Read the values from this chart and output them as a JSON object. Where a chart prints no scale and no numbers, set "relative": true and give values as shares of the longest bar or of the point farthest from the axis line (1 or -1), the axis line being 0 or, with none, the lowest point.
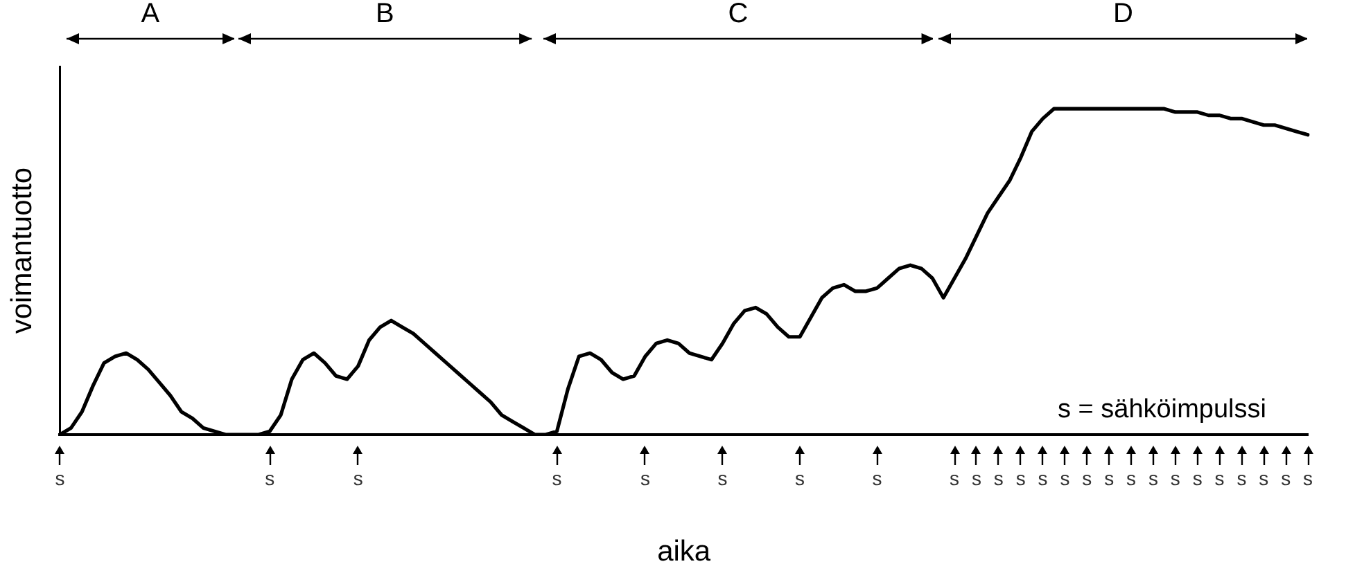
{
  "chart_data": {
    "type": "line",
    "xlabel": "aika",
    "ylabel": "voimantuotto",
    "relative": true,
    "tick_labels": "x",
    "grid": false,
    "legend": false,
    "marker": "none",
    "line_style": "solid",
    "categories": [
      "s",
      null,
      null,
      null,
      null,
      null,
      null,
      null,
      null,
      null,
      null,
      null,
      null,
      null,
      null,
      null,
      null,
      null,
      null,
      "s",
      null,
      null,
      null,
      null,
      null,
      null,
      null,
      "s",
      null,
      null,
      null,
      null,
      null,
      null,
      null,
      null,
      null,
      null,
      null,
      null,
      null,
      null,
      null,
      null,
      null,
      "s",
      null,
      null,
      null,
      null,
      null,
      null,
      null,
      "s",
      null,
      null,
      null,
      null,
      null,
      null,
      "s",
      null,
      null,
      null,
      null,
      null,
      null,
      "s",
      null,
      null,
      null,
      null,
      null,
      null,
      "s",
      null,
      null,
      null,
      null,
      null,
      null,
      "s",
      null,
      "s",
      null,
      "s",
      null,
      "s",
      null,
      "s",
      null,
      "s",
      null,
      "s",
      null,
      "s",
      null,
      "s",
      null,
      "s",
      null,
      "s",
      null,
      "s",
      null,
      "s",
      null,
      "s",
      null,
      "s",
      null,
      "s",
      null,
      "s"
    ],
    "series": [
      {
        "color": "#000000",
        "values": [
          0,
          0.02,
          0.07,
          0.15,
          0.22,
          0.24,
          0.25,
          0.23,
          0.2,
          0.16,
          0.12,
          0.07,
          0.05,
          0.02,
          0.01,
          0,
          0,
          0,
          0,
          0.01,
          0.06,
          0.17,
          0.23,
          0.25,
          0.22,
          0.18,
          0.17,
          0.21,
          0.29,
          0.33,
          0.35,
          0.33,
          0.31,
          0.28,
          0.25,
          0.22,
          0.19,
          0.16,
          0.13,
          0.1,
          0.06,
          0.04,
          0.02,
          0,
          0,
          0.01,
          0.14,
          0.24,
          0.25,
          0.23,
          0.19,
          0.17,
          0.18,
          0.24,
          0.28,
          0.29,
          0.28,
          0.25,
          0.24,
          0.23,
          0.28,
          0.34,
          0.38,
          0.39,
          0.37,
          0.33,
          0.3,
          0.3,
          0.36,
          0.42,
          0.45,
          0.46,
          0.44,
          0.44,
          0.45,
          0.48,
          0.51,
          0.52,
          0.51,
          0.48,
          0.42,
          0.48,
          0.54,
          0.61,
          0.68,
          0.73,
          0.78,
          0.85,
          0.93,
          0.97,
          1,
          1,
          1,
          1,
          1,
          1,
          1,
          1,
          1,
          1,
          1,
          0.99,
          0.99,
          0.99,
          0.98,
          0.98,
          0.97,
          0.97,
          0.96,
          0.95,
          0.95,
          0.94,
          0.93,
          0.92
        ]
      }
    ],
    "annotations": [
      "A",
      "B",
      "C",
      "D",
      "s = sähköimpulssi"
    ]
  }
}
